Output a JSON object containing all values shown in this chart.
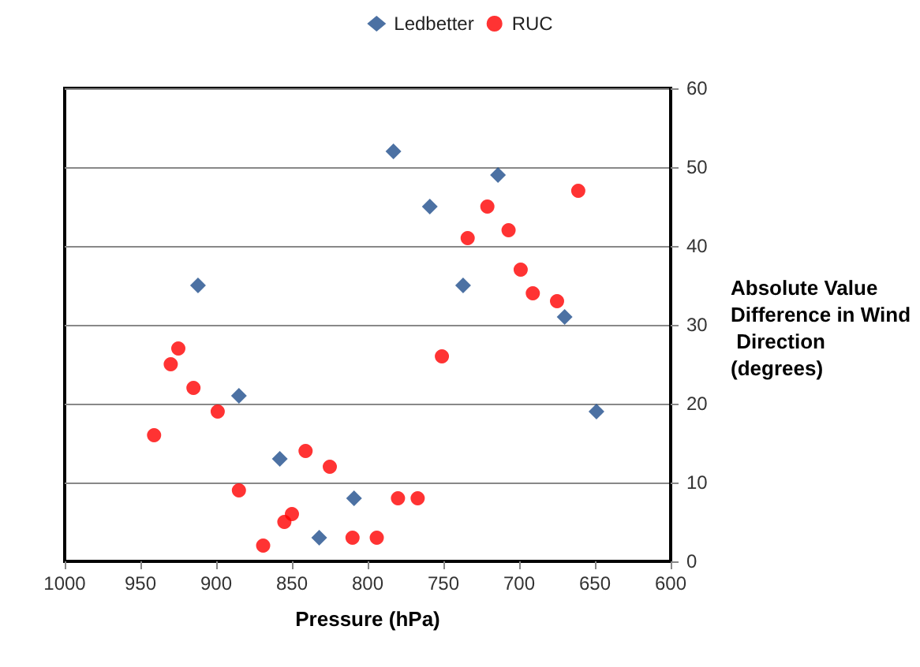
{
  "chart_data": {
    "type": "scatter",
    "xlabel": "Pressure (hPa)",
    "ylabel": "Absolute Value Difference in Wind Direction (degrees)",
    "xlim": [
      1000,
      600
    ],
    "xticks": [
      1000,
      950,
      900,
      850,
      800,
      750,
      700,
      650,
      600
    ],
    "ylim": [
      0,
      60
    ],
    "yticks": [
      0,
      10,
      20,
      30,
      40,
      50,
      60
    ],
    "grid": "y",
    "legend": "top",
    "series": [
      {
        "name": "Ledbetter",
        "color": "#1f4e8c",
        "marker": "diamond",
        "x": [
          783,
          759,
          714,
          737,
          912,
          885,
          858,
          809,
          832,
          670,
          649
        ],
        "values": [
          52,
          45,
          49,
          35,
          35,
          21,
          13,
          8,
          3,
          31,
          19
        ]
      },
      {
        "name": "RUC",
        "color": "#ff0000",
        "marker": "circle",
        "x": [
          721,
          734,
          707,
          751,
          925,
          930,
          915,
          899,
          941,
          841,
          825,
          885,
          780,
          767,
          850,
          855,
          869,
          810,
          794,
          661,
          699,
          691,
          675
        ],
        "values": [
          45,
          41,
          42,
          26,
          27,
          25,
          22,
          19,
          16,
          14,
          12,
          9,
          8,
          8,
          6,
          5,
          2,
          3,
          3,
          47,
          37,
          34,
          33
        ]
      }
    ]
  }
}
